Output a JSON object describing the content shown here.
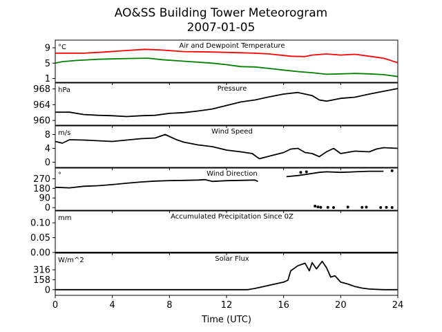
{
  "title": "AO&SS Building Tower Meteorogram",
  "subtitle": "2007-01-05",
  "xlabel": "Time (UTC)",
  "chart_data": {
    "type": "line",
    "x_ticks": [
      0,
      4,
      8,
      12,
      16,
      20,
      24
    ],
    "xlim": [
      0,
      24
    ],
    "panels": [
      {
        "name": "temperature",
        "title": "Air and Dewpoint Temperature",
        "unit": "°C",
        "ylim": [
          0,
          11
        ],
        "yticks": [
          1,
          5,
          9
        ],
        "series": [
          {
            "color": "#ff0000",
            "points": [
              [
                0,
                7.6
              ],
              [
                2,
                7.6
              ],
              [
                3.5,
                7.9
              ],
              [
                5,
                8.3
              ],
              [
                6.3,
                8.6
              ],
              [
                7.5,
                8.4
              ],
              [
                9,
                8.0
              ],
              [
                11,
                7.9
              ],
              [
                13,
                7.7
              ],
              [
                14,
                7.6
              ],
              [
                15,
                7.4
              ],
              [
                16,
                7.0
              ],
              [
                16.5,
                6.8
              ],
              [
                17.5,
                6.7
              ],
              [
                18,
                7.1
              ],
              [
                19,
                7.4
              ],
              [
                20,
                7.1
              ],
              [
                21,
                7.3
              ],
              [
                22,
                6.8
              ],
              [
                23,
                6.3
              ],
              [
                24,
                5.1
              ]
            ]
          },
          {
            "color": "#008000",
            "points": [
              [
                0,
                5.0
              ],
              [
                0.5,
                5.4
              ],
              [
                1.5,
                5.7
              ],
              [
                3,
                6.0
              ],
              [
                5,
                6.2
              ],
              [
                6.5,
                6.3
              ],
              [
                7.5,
                5.9
              ],
              [
                9,
                5.5
              ],
              [
                11,
                5.0
              ],
              [
                12,
                4.6
              ],
              [
                13,
                4.1
              ],
              [
                14,
                4.0
              ],
              [
                15,
                3.6
              ],
              [
                16,
                3.2
              ],
              [
                17,
                2.8
              ],
              [
                18,
                2.5
              ],
              [
                19,
                2.1
              ],
              [
                20,
                2.2
              ],
              [
                21,
                2.3
              ],
              [
                22,
                2.2
              ],
              [
                23,
                2.0
              ],
              [
                24,
                1.5
              ]
            ]
          }
        ]
      },
      {
        "name": "pressure",
        "title": "Pressure",
        "unit": "hPa",
        "ylim": [
          958.8,
          969.5
        ],
        "yticks": [
          960,
          964,
          968
        ],
        "series": [
          {
            "color": "#000000",
            "points": [
              [
                0,
                962.1
              ],
              [
                1,
                962.1
              ],
              [
                2,
                961.5
              ],
              [
                3,
                961.3
              ],
              [
                4,
                961.2
              ],
              [
                5,
                961.0
              ],
              [
                6,
                961.2
              ],
              [
                7,
                961.3
              ],
              [
                8,
                961.8
              ],
              [
                9,
                962.0
              ],
              [
                10,
                962.4
              ],
              [
                11,
                962.9
              ],
              [
                12,
                963.8
              ],
              [
                13,
                964.7
              ],
              [
                14,
                965.2
              ],
              [
                15,
                966.0
              ],
              [
                16,
                966.7
              ],
              [
                17,
                967.1
              ],
              [
                17.5,
                966.7
              ],
              [
                18,
                966.3
              ],
              [
                18.5,
                965.2
              ],
              [
                19,
                964.9
              ],
              [
                20,
                965.6
              ],
              [
                21,
                965.9
              ],
              [
                22,
                966.7
              ],
              [
                23,
                967.4
              ],
              [
                24,
                968.1
              ]
            ]
          }
        ]
      },
      {
        "name": "wind_speed",
        "title": "Wind Speed",
        "unit": "m/s",
        "ylim": [
          -1.5,
          10.5
        ],
        "yticks": [
          0,
          4,
          8
        ],
        "series": [
          {
            "color": "#000000",
            "points": [
              [
                0,
                6.0
              ],
              [
                0.5,
                5.5
              ],
              [
                1,
                6.5
              ],
              [
                2,
                6.4
              ],
              [
                3,
                6.2
              ],
              [
                4,
                6.0
              ],
              [
                5,
                6.4
              ],
              [
                6,
                6.8
              ],
              [
                7,
                7.0
              ],
              [
                7.7,
                8.0
              ],
              [
                8.5,
                6.5
              ],
              [
                9,
                5.8
              ],
              [
                10,
                5.0
              ],
              [
                11,
                4.5
              ],
              [
                12,
                3.5
              ],
              [
                13,
                3.0
              ],
              [
                13.8,
                2.5
              ],
              [
                14.3,
                1.0
              ],
              [
                16,
                2.8
              ],
              [
                16.5,
                3.8
              ],
              [
                17,
                4.0
              ],
              [
                17.5,
                2.8
              ],
              [
                18,
                2.5
              ],
              [
                18.5,
                1.6
              ],
              [
                19,
                3.0
              ],
              [
                19.5,
                4.0
              ],
              [
                20,
                2.5
              ],
              [
                21,
                3.2
              ],
              [
                22,
                3.0
              ],
              [
                22.5,
                3.8
              ],
              [
                23,
                4.2
              ],
              [
                24,
                4.0
              ]
            ]
          }
        ]
      },
      {
        "name": "wind_direction",
        "title": "Wind Direction",
        "unit": "°",
        "ylim": [
          -25,
          370
        ],
        "yticks": [
          0,
          90,
          180,
          270
        ],
        "series": [
          {
            "color": "#000000",
            "points": [
              [
                0,
                190
              ],
              [
                1,
                185
              ],
              [
                2,
                200
              ],
              [
                3,
                205
              ],
              [
                4,
                215
              ],
              [
                5,
                228
              ],
              [
                6,
                240
              ],
              [
                7,
                248
              ],
              [
                8,
                253
              ],
              [
                9,
                255
              ],
              [
                10,
                258
              ],
              [
                10.5,
                262
              ],
              [
                11,
                245
              ],
              [
                12,
                252
              ],
              [
                13,
                255
              ],
              [
                14,
                258
              ],
              [
                14.2,
                245
              ]
            ]
          },
          {
            "color": "#000000",
            "points": [
              [
                16.2,
                290
              ],
              [
                17,
                300
              ],
              [
                17.5,
                310
              ],
              [
                18.5,
                330
              ],
              [
                19,
                335
              ],
              [
                20,
                330
              ],
              [
                21,
                335
              ],
              [
                22,
                340
              ],
              [
                23,
                340
              ]
            ]
          }
        ],
        "scatter": [
          [
            18.2,
            14
          ],
          [
            18.4,
            6
          ],
          [
            18.6,
            3
          ],
          [
            19.1,
            2
          ],
          [
            19.5,
            1
          ],
          [
            20.5,
            5
          ],
          [
            21.5,
            3
          ],
          [
            21.8,
            4
          ],
          [
            22.8,
            1
          ],
          [
            23.2,
            2
          ],
          [
            23.6,
            1
          ],
          [
            17.2,
            330
          ],
          [
            17.6,
            335
          ],
          [
            23.6,
            345
          ]
        ]
      },
      {
        "name": "precipitation",
        "title": "Accumulated Precipitation Since 0Z",
        "unit": "mm",
        "ylim": [
          0,
          0.14
        ],
        "yticks": [
          0.0,
          0.05,
          0.1
        ],
        "ytick_labels": [
          "0.00",
          "0.05",
          "0.10"
        ],
        "series": [
          {
            "color": "#000000",
            "points": [
              [
                0,
                0
              ],
              [
                24,
                0
              ]
            ]
          }
        ]
      },
      {
        "name": "solar_flux",
        "title": "Solar Flux",
        "unit": "W/m^2",
        "ylim": [
          -90,
          580
        ],
        "yticks": [
          0,
          158,
          316
        ],
        "series": [
          {
            "color": "#000000",
            "points": [
              [
                0,
                0
              ],
              [
                13.5,
                0
              ],
              [
                14,
                20
              ],
              [
                15,
                70
              ],
              [
                16,
                120
              ],
              [
                16.3,
                150
              ],
              [
                16.5,
                300
              ],
              [
                17,
                380
              ],
              [
                17.5,
                420
              ],
              [
                17.8,
                300
              ],
              [
                18,
                430
              ],
              [
                18.3,
                330
              ],
              [
                18.7,
                450
              ],
              [
                19,
                350
              ],
              [
                19.3,
                200
              ],
              [
                19.6,
                220
              ],
              [
                20,
                120
              ],
              [
                20.5,
                90
              ],
              [
                21,
                50
              ],
              [
                21.5,
                25
              ],
              [
                22,
                10
              ],
              [
                23,
                0
              ],
              [
                24,
                0
              ]
            ]
          }
        ]
      }
    ]
  }
}
